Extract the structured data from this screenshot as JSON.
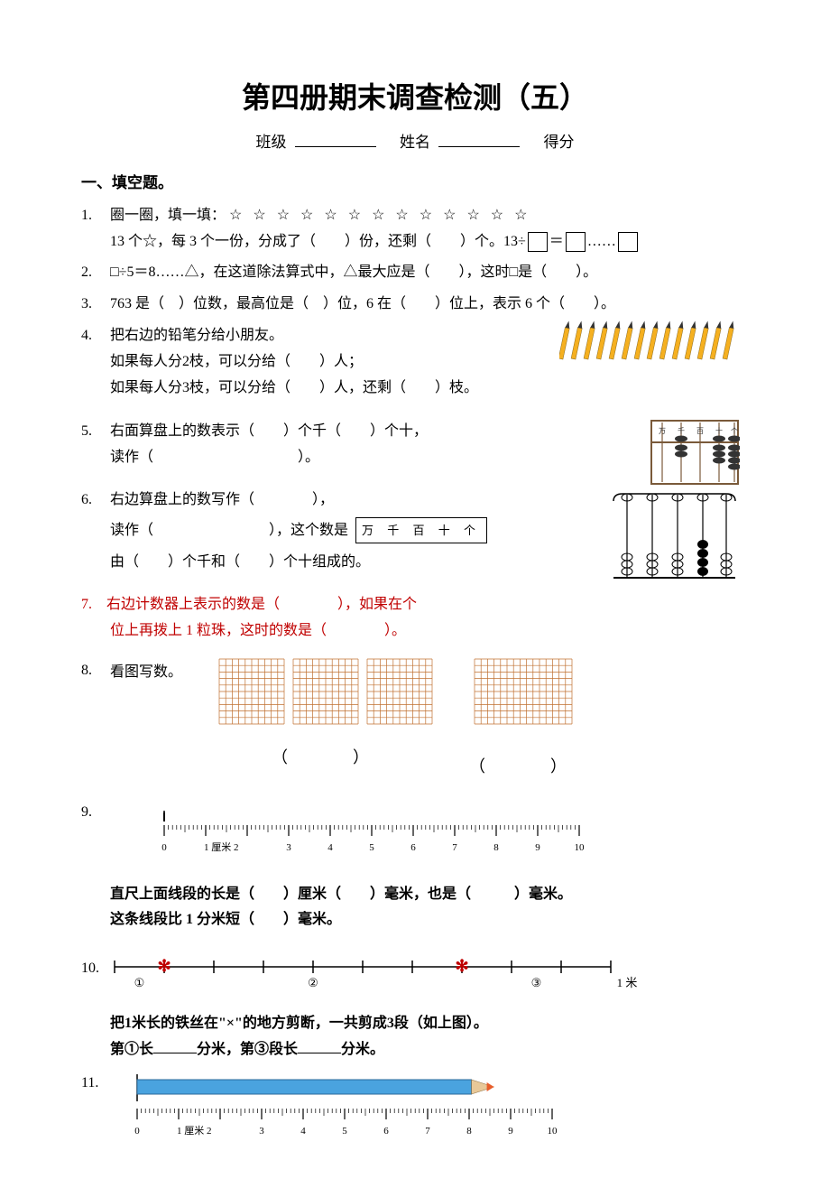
{
  "header": {
    "main_title": "第四册期末调查检测（五）",
    "class_label": "班级",
    "name_label": "姓名",
    "score_label": "得分"
  },
  "section1": {
    "title": "一、填空题。",
    "q1": {
      "num": "1.",
      "prompt": "圈一圈，填一填：",
      "stars": "☆ ☆ ☆ ☆ ☆ ☆ ☆ ☆ ☆ ☆ ☆ ☆ ☆",
      "line2a": "13 个☆，每 3 个一份，分成了（　　）份，还剩（　　）个。13÷",
      "line2b": "＝",
      "line2c": "……"
    },
    "q2": {
      "num": "2.",
      "text": "□÷5＝8……△，在这道除法算式中，△最大应是（　　），这时□是（　　）。"
    },
    "q3": {
      "num": "3.",
      "text": "763 是（　）位数，最高位是（　）位，6 在（　　）位上，表示 6 个（　　）。"
    },
    "q4": {
      "num": "4.",
      "line1": "把右边的铅笔分给小朋友。",
      "line2": "如果每人分2枝，可以分给（　　）人；",
      "line3": "如果每人分3枝，可以分给（　　）人，还剩（　　）枝。",
      "pencil_count": 14,
      "pencil_color": "#f5b020"
    },
    "q5": {
      "num": "5.",
      "line1": "右面算盘上的数表示（　　）个千（　　）个十，",
      "line2": "读作（　　　　　　　　　　）。",
      "abacus": {
        "labels": [
          "万",
          "千",
          "百",
          "十",
          "个"
        ],
        "frame_color": "#7a5a3a",
        "bead_color": "#333"
      }
    },
    "q6": {
      "num": "6.",
      "line1": "右边算盘上的数写作（　　　　），",
      "line2a": "读作（　　　　　　　　），这个数是",
      "line3": "由（　　）个千和（　　）个十组成的。",
      "counter_labels": "万 千 百 十 个"
    },
    "q7": {
      "num": "7.",
      "line1": "右边计数器上表示的数是（　　　　），如果在个",
      "line2": "位上再拨上 1 粒珠，这时的数是（　　　　）。"
    },
    "q8": {
      "num": "8.",
      "text": "看图写数。",
      "grid_color": "#c07030",
      "left_paren": "（　　）",
      "right_paren": "（　　）"
    },
    "q9": {
      "num": "9.",
      "line1": "直尺上面线段的长是（　　）厘米（　　）毫米，也是（　　　）毫米。",
      "line2": "这条线段比 1 分米短（　　）毫米。",
      "ruler": {
        "max": 10,
        "unit_label": "1 厘米 2"
      }
    },
    "q10": {
      "num": "10.",
      "seg_labels": [
        "①",
        "②",
        "③"
      ],
      "end_label": "1 米",
      "line1": "把1米长的铁丝在\"×\"的地方剪断，一共剪成3段（如上图）。",
      "line2a": "第①长",
      "line2b": "分米，第③段长",
      "line2c": "分米。"
    },
    "q11": {
      "num": "11.",
      "pencil_color": "#4aa3df",
      "tip_color": "#e85d2a"
    }
  }
}
